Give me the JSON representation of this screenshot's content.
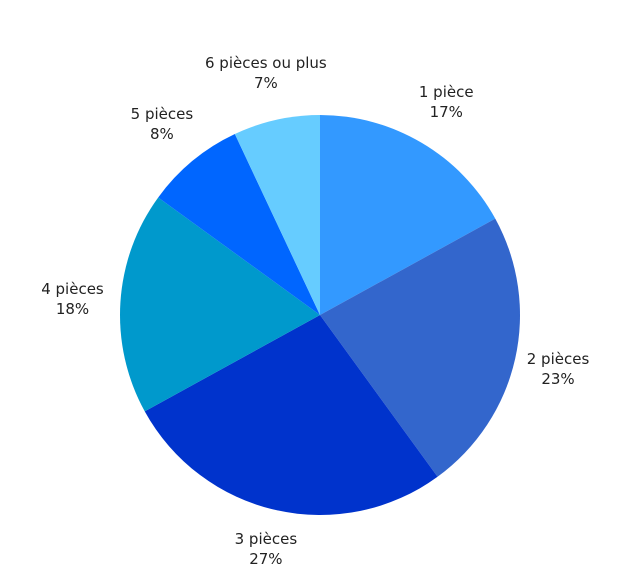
{
  "chart_data": {
    "type": "pie",
    "categories": [
      "1 pièce",
      "2 pièces",
      "3 pièces",
      "4 pièces",
      "5 pièces",
      "6 pièces ou plus"
    ],
    "values": [
      17,
      23,
      27,
      18,
      8,
      7
    ],
    "value_labels": [
      "17%",
      "23%",
      "27%",
      "18%",
      "8%",
      "7%"
    ],
    "colors": [
      "#3399ff",
      "#3366cc",
      "#0033cc",
      "#0099cc",
      "#0066ff",
      "#66ccff"
    ]
  }
}
